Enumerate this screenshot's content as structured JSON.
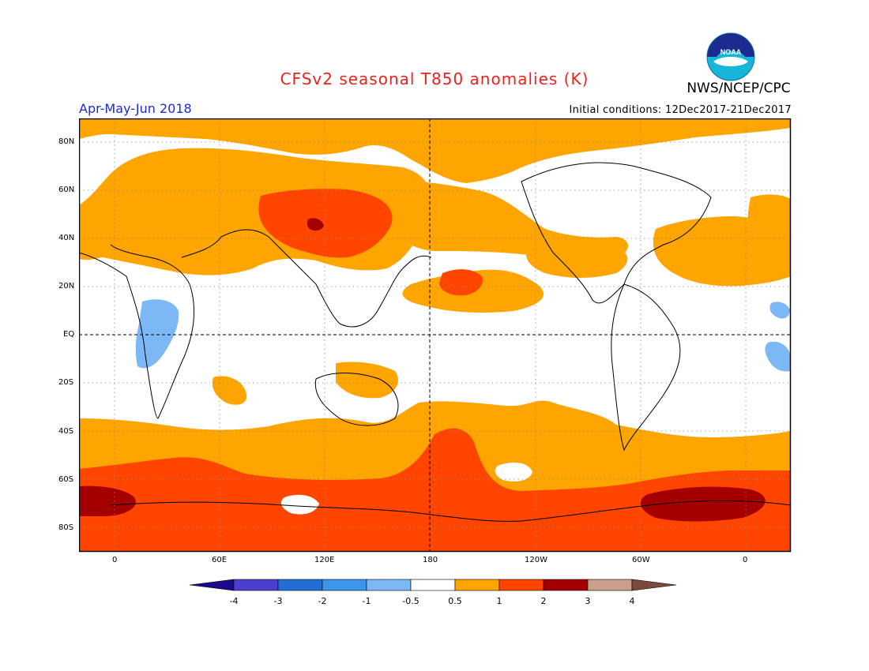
{
  "header": {
    "title": "CFSv2 seasonal T850 anomalies (K)",
    "agency": "NWS/NCEP/CPC",
    "season": "Apr-May-Jun 2018",
    "initial_conditions": "Initial conditions: 12Dec2017-21Dec2017",
    "logo_text": "NOAA"
  },
  "axes": {
    "lat_labels": [
      "80N",
      "60N",
      "40N",
      "20N",
      "EQ",
      "20S",
      "40S",
      "60S",
      "80S"
    ],
    "lon_labels": [
      "0",
      "60E",
      "120E",
      "180",
      "120W",
      "60W",
      "0"
    ]
  },
  "colorbar": {
    "labels": [
      "-4",
      "-3",
      "-2",
      "-1",
      "-0.5",
      "0.5",
      "1",
      "2",
      "3",
      "4"
    ],
    "colors": [
      "#1a0a8c",
      "#4a3fd0",
      "#1f6fd6",
      "#3d95ea",
      "#7cb8f5",
      "#ffffff",
      "#ffa500",
      "#ff4500",
      "#a50000",
      "#c8a08c",
      "#7b4a3c"
    ]
  },
  "colors": {
    "warm_small": "#ffa500",
    "warm_mid": "#ff4500",
    "warm_high": "#a50000",
    "cool_small": "#7cb8f5",
    "title": "#e8231e",
    "season": "#1d2ad8"
  }
}
